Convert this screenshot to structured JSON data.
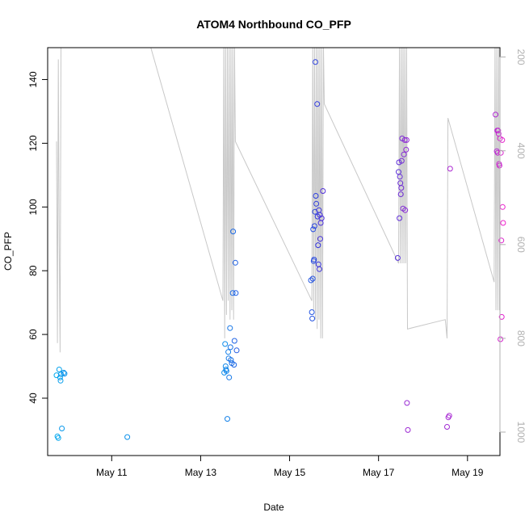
{
  "chart_data": {
    "type": "scatter",
    "title": "ATOM4 Northbound CO_PFP",
    "xlabel": "Date",
    "ylabel": "CO_PFP",
    "x_unit": "days since May 9 00:00",
    "xlim": [
      0.56,
      10.73
    ],
    "ylim": [
      22,
      150
    ],
    "x_ticks": [
      {
        "value": 2,
        "label": "May 11"
      },
      {
        "value": 4,
        "label": "May 13"
      },
      {
        "value": 6,
        "label": "May 15"
      },
      {
        "value": 8,
        "label": "May 17"
      },
      {
        "value": 10,
        "label": "May 19"
      }
    ],
    "y_ticks": [
      40,
      60,
      80,
      100,
      120,
      140
    ],
    "secondary_axis": {
      "position": "right",
      "ylim_top_to_bottom": [
        180,
        1050
      ],
      "ticks": [
        200,
        400,
        600,
        800,
        1000
      ],
      "color": "#b0b0b0"
    },
    "color_scale": {
      "start": "#00aaee",
      "middle": "#3333dd",
      "end": "#ee22cc"
    },
    "points": [
      {
        "x": 0.76,
        "y": 47.2
      },
      {
        "x": 0.78,
        "y": 28.0
      },
      {
        "x": 0.8,
        "y": 27.5
      },
      {
        "x": 0.82,
        "y": 49.0
      },
      {
        "x": 0.84,
        "y": 46.5
      },
      {
        "x": 0.85,
        "y": 45.5
      },
      {
        "x": 0.86,
        "y": 47.5
      },
      {
        "x": 0.88,
        "y": 30.5
      },
      {
        "x": 0.92,
        "y": 48.0
      },
      {
        "x": 0.94,
        "y": 47.7
      },
      {
        "x": 2.35,
        "y": 27.8
      },
      {
        "x": 4.53,
        "y": 48.0
      },
      {
        "x": 4.55,
        "y": 57.0
      },
      {
        "x": 4.56,
        "y": 50.0
      },
      {
        "x": 4.57,
        "y": 49.0
      },
      {
        "x": 4.58,
        "y": 48.5
      },
      {
        "x": 4.6,
        "y": 33.5
      },
      {
        "x": 4.62,
        "y": 54.5
      },
      {
        "x": 4.63,
        "y": 52.5
      },
      {
        "x": 4.64,
        "y": 46.5
      },
      {
        "x": 4.66,
        "y": 62.0
      },
      {
        "x": 4.67,
        "y": 56.0
      },
      {
        "x": 4.68,
        "y": 52.0
      },
      {
        "x": 4.7,
        "y": 51.0
      },
      {
        "x": 4.72,
        "y": 73.0
      },
      {
        "x": 4.73,
        "y": 92.3
      },
      {
        "x": 4.75,
        "y": 50.5
      },
      {
        "x": 4.76,
        "y": 58.0
      },
      {
        "x": 4.78,
        "y": 82.5
      },
      {
        "x": 4.79,
        "y": 73.0
      },
      {
        "x": 4.81,
        "y": 55.0
      },
      {
        "x": 6.48,
        "y": 77.0
      },
      {
        "x": 6.5,
        "y": 67.0
      },
      {
        "x": 6.51,
        "y": 65.0
      },
      {
        "x": 6.52,
        "y": 77.5
      },
      {
        "x": 6.53,
        "y": 93.0
      },
      {
        "x": 6.54,
        "y": 83.0
      },
      {
        "x": 6.55,
        "y": 83.5
      },
      {
        "x": 6.56,
        "y": 94.0
      },
      {
        "x": 6.57,
        "y": 98.5
      },
      {
        "x": 6.58,
        "y": 145.5
      },
      {
        "x": 6.59,
        "y": 103.5
      },
      {
        "x": 6.6,
        "y": 101.0
      },
      {
        "x": 6.62,
        "y": 132.3
      },
      {
        "x": 6.63,
        "y": 97.0
      },
      {
        "x": 6.64,
        "y": 88.0
      },
      {
        "x": 6.65,
        "y": 82.0
      },
      {
        "x": 6.66,
        "y": 99.0
      },
      {
        "x": 6.67,
        "y": 80.5
      },
      {
        "x": 6.68,
        "y": 97.5
      },
      {
        "x": 6.69,
        "y": 90.0
      },
      {
        "x": 6.7,
        "y": 95.0
      },
      {
        "x": 6.72,
        "y": 96.5
      },
      {
        "x": 6.75,
        "y": 105.0
      },
      {
        "x": 8.43,
        "y": 84.0
      },
      {
        "x": 8.45,
        "y": 111.0
      },
      {
        "x": 8.46,
        "y": 114.0
      },
      {
        "x": 8.47,
        "y": 96.5
      },
      {
        "x": 8.48,
        "y": 109.5
      },
      {
        "x": 8.49,
        "y": 107.5
      },
      {
        "x": 8.5,
        "y": 104.0
      },
      {
        "x": 8.51,
        "y": 106.0
      },
      {
        "x": 8.52,
        "y": 114.5
      },
      {
        "x": 8.53,
        "y": 121.5
      },
      {
        "x": 8.55,
        "y": 99.5
      },
      {
        "x": 8.57,
        "y": 116.5
      },
      {
        "x": 8.59,
        "y": 121.0
      },
      {
        "x": 8.6,
        "y": 99.0
      },
      {
        "x": 8.62,
        "y": 118.0
      },
      {
        "x": 8.63,
        "y": 121.0
      },
      {
        "x": 8.64,
        "y": 38.5
      },
      {
        "x": 8.66,
        "y": 30.0
      },
      {
        "x": 9.54,
        "y": 31.0
      },
      {
        "x": 9.57,
        "y": 34.0
      },
      {
        "x": 9.59,
        "y": 34.5
      },
      {
        "x": 9.61,
        "y": 112.0
      },
      {
        "x": 10.63,
        "y": 129.0
      },
      {
        "x": 10.66,
        "y": 117.5
      },
      {
        "x": 10.67,
        "y": 124.0
      },
      {
        "x": 10.68,
        "y": 117.0
      },
      {
        "x": 10.69,
        "y": 124.0
      },
      {
        "x": 10.7,
        "y": 123.0
      },
      {
        "x": 10.71,
        "y": 113.5
      },
      {
        "x": 10.72,
        "y": 113.0
      },
      {
        "x": 10.73,
        "y": 121.5
      },
      {
        "x": 10.74,
        "y": 58.5
      },
      {
        "x": 10.75,
        "y": 117.0
      },
      {
        "x": 10.76,
        "y": 89.5
      },
      {
        "x": 10.77,
        "y": 65.5
      },
      {
        "x": 10.78,
        "y": 121.0
      },
      {
        "x": 10.79,
        "y": 100.0
      },
      {
        "x": 10.8,
        "y": 95.0
      }
    ],
    "altitude_line": [
      [
        0.76,
        380
      ],
      [
        0.78,
        810
      ],
      [
        0.8,
        205
      ],
      [
        0.82,
        600
      ],
      [
        0.84,
        830
      ],
      [
        0.86,
        170
      ],
      [
        2.85,
        170
      ],
      [
        4.5,
        720
      ],
      [
        4.52,
        170
      ],
      [
        4.54,
        800
      ],
      [
        4.56,
        170
      ],
      [
        4.58,
        750
      ],
      [
        4.6,
        170
      ],
      [
        4.62,
        720
      ],
      [
        4.64,
        170
      ],
      [
        4.66,
        760
      ],
      [
        4.68,
        170
      ],
      [
        4.7,
        740
      ],
      [
        4.72,
        170
      ],
      [
        4.74,
        760
      ],
      [
        4.76,
        170
      ],
      [
        4.78,
        380
      ],
      [
        6.5,
        720
      ],
      [
        6.52,
        170
      ],
      [
        6.54,
        740
      ],
      [
        6.56,
        170
      ],
      [
        6.58,
        760
      ],
      [
        6.6,
        170
      ],
      [
        6.62,
        780
      ],
      [
        6.64,
        170
      ],
      [
        6.66,
        760
      ],
      [
        6.68,
        170
      ],
      [
        6.7,
        800
      ],
      [
        6.72,
        170
      ],
      [
        6.74,
        800
      ],
      [
        6.76,
        170
      ],
      [
        6.78,
        300
      ],
      [
        8.45,
        640
      ],
      [
        8.47,
        170
      ],
      [
        8.49,
        640
      ],
      [
        8.51,
        170
      ],
      [
        8.53,
        640
      ],
      [
        8.55,
        170
      ],
      [
        8.57,
        640
      ],
      [
        8.59,
        170
      ],
      [
        8.61,
        640
      ],
      [
        8.63,
        170
      ],
      [
        8.65,
        780
      ],
      [
        9.5,
        760
      ],
      [
        9.52,
        780
      ],
      [
        9.54,
        800
      ],
      [
        9.56,
        330
      ],
      [
        10.6,
        680
      ],
      [
        10.62,
        170
      ],
      [
        10.64,
        740
      ],
      [
        10.66,
        170
      ],
      [
        10.68,
        740
      ],
      [
        10.7,
        170
      ],
      [
        10.72,
        740
      ],
      [
        10.74,
        170
      ],
      [
        10.76,
        740
      ],
      [
        10.78,
        170
      ],
      [
        10.8,
        740
      ]
    ]
  }
}
